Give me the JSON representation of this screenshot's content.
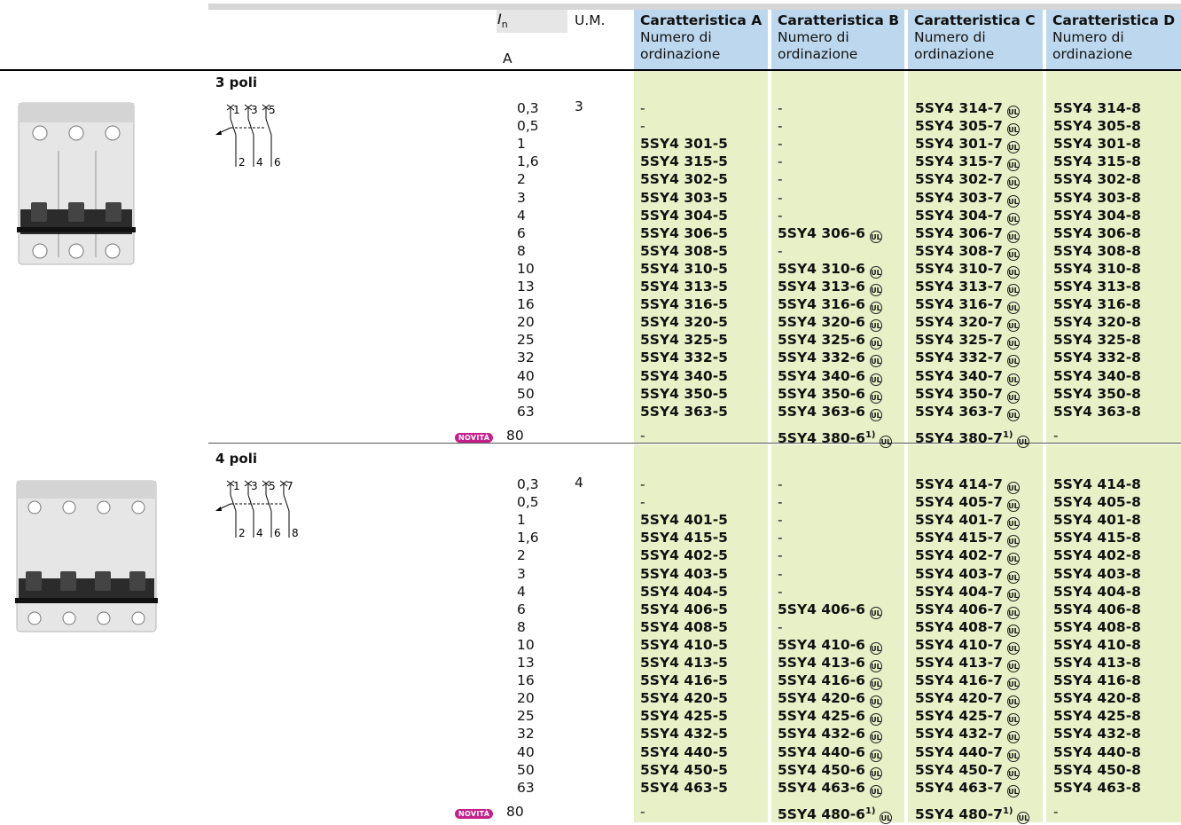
{
  "header": {
    "in_symbol": "I",
    "in_sub": "n",
    "in_unit": "A",
    "um": "U.M.",
    "cols": [
      {
        "title": "Caratteristica A",
        "sub1": "Numero di",
        "sub2": "ordinazione"
      },
      {
        "title": "Caratteristica B",
        "sub1": "Numero di",
        "sub2": "ordinazione"
      },
      {
        "title": "Caratteristica C",
        "sub1": "Numero di",
        "sub2": "ordinazione"
      },
      {
        "title": "Caratteristica D",
        "sub1": "Numero di",
        "sub2": "ordinazione"
      }
    ]
  },
  "symbol_ul": "UL",
  "sections": [
    {
      "title": "3 poli",
      "um": "3",
      "terminals_top": [
        "1",
        "3",
        "5"
      ],
      "terminals_bottom": [
        "2",
        "4",
        "6"
      ],
      "rows": [
        {
          "in": "0,3",
          "a": "-",
          "b": "-",
          "c": "5SY4 314-7",
          "d": "5SY4 314-8"
        },
        {
          "in": "0,5",
          "a": "-",
          "b": "-",
          "c": "5SY4 305-7",
          "d": "5SY4 305-8"
        },
        {
          "in": "1",
          "a": "5SY4 301-5",
          "b": "-",
          "c": "5SY4 301-7",
          "d": "5SY4 301-8"
        },
        {
          "in": "1,6",
          "a": "5SY4 315-5",
          "b": "-",
          "c": "5SY4 315-7",
          "d": "5SY4 315-8"
        },
        {
          "in": "2",
          "a": "5SY4 302-5",
          "b": "-",
          "c": "5SY4 302-7",
          "d": "5SY4 302-8"
        },
        {
          "in": "3",
          "a": "5SY4 303-5",
          "b": "-",
          "c": "5SY4 303-7",
          "d": "5SY4 303-8"
        },
        {
          "in": "4",
          "a": "5SY4 304-5",
          "b": "-",
          "c": "5SY4 304-7",
          "d": "5SY4 304-8"
        },
        {
          "in": "6",
          "a": "5SY4 306-5",
          "b": "5SY4 306-6",
          "c": "5SY4 306-7",
          "d": "5SY4 306-8"
        },
        {
          "in": "8",
          "a": "5SY4 308-5",
          "b": "-",
          "c": "5SY4 308-7",
          "d": "5SY4 308-8"
        },
        {
          "in": "10",
          "a": "5SY4 310-5",
          "b": "5SY4 310-6",
          "c": "5SY4 310-7",
          "d": "5SY4 310-8"
        },
        {
          "in": "13",
          "a": "5SY4 313-5",
          "b": "5SY4 313-6",
          "c": "5SY4 313-7",
          "d": "5SY4 313-8"
        },
        {
          "in": "16",
          "a": "5SY4 316-5",
          "b": "5SY4 316-6",
          "c": "5SY4 316-7",
          "d": "5SY4 316-8"
        },
        {
          "in": "20",
          "a": "5SY4 320-5",
          "b": "5SY4 320-6",
          "c": "5SY4 320-7",
          "d": "5SY4 320-8"
        },
        {
          "in": "25",
          "a": "5SY4 325-5",
          "b": "5SY4 325-6",
          "c": "5SY4 325-7",
          "d": "5SY4 325-8"
        },
        {
          "in": "32",
          "a": "5SY4 332-5",
          "b": "5SY4 332-6",
          "c": "5SY4 332-7",
          "d": "5SY4 332-8"
        },
        {
          "in": "40",
          "a": "5SY4 340-5",
          "b": "5SY4 340-6",
          "c": "5SY4 340-7",
          "d": "5SY4 340-8"
        },
        {
          "in": "50",
          "a": "5SY4 350-5",
          "b": "5SY4 350-6",
          "c": "5SY4 350-7",
          "d": "5SY4 350-8"
        },
        {
          "in": "63",
          "a": "5SY4 363-5",
          "b": "5SY4 363-6",
          "c": "5SY4 363-7",
          "d": "5SY4 363-8"
        }
      ],
      "new_row": {
        "badge": "NOVITÀ",
        "in": "80",
        "a": "-",
        "b": "5SY4 380-6",
        "b_sup": "1)",
        "c": "5SY4 380-7",
        "c_sup": "1)",
        "d": "-"
      }
    },
    {
      "title": "4 poli",
      "um": "4",
      "terminals_top": [
        "1",
        "3",
        "5",
        "7"
      ],
      "terminals_bottom": [
        "2",
        "4",
        "6",
        "8"
      ],
      "rows": [
        {
          "in": "0,3",
          "a": "-",
          "b": "-",
          "c": "5SY4 414-7",
          "d": "5SY4 414-8"
        },
        {
          "in": "0,5",
          "a": "-",
          "b": "-",
          "c": "5SY4 405-7",
          "d": "5SY4 405-8"
        },
        {
          "in": "1",
          "a": "5SY4 401-5",
          "b": "-",
          "c": "5SY4 401-7",
          "d": "5SY4 401-8"
        },
        {
          "in": "1,6",
          "a": "5SY4 415-5",
          "b": "-",
          "c": "5SY4 415-7",
          "d": "5SY4 415-8"
        },
        {
          "in": "2",
          "a": "5SY4 402-5",
          "b": "-",
          "c": "5SY4 402-7",
          "d": "5SY4 402-8"
        },
        {
          "in": "3",
          "a": "5SY4 403-5",
          "b": "-",
          "c": "5SY4 403-7",
          "d": "5SY4 403-8"
        },
        {
          "in": "4",
          "a": "5SY4 404-5",
          "b": "-",
          "c": "5SY4 404-7",
          "d": "5SY4 404-8"
        },
        {
          "in": "6",
          "a": "5SY4 406-5",
          "b": "5SY4 406-6",
          "c": "5SY4 406-7",
          "d": "5SY4 406-8"
        },
        {
          "in": "8",
          "a": "5SY4 408-5",
          "b": "-",
          "c": "5SY4 408-7",
          "d": "5SY4 408-8"
        },
        {
          "in": "10",
          "a": "5SY4 410-5",
          "b": "5SY4 410-6",
          "c": "5SY4 410-7",
          "d": "5SY4 410-8"
        },
        {
          "in": "13",
          "a": "5SY4 413-5",
          "b": "5SY4 413-6",
          "c": "5SY4 413-7",
          "d": "5SY4 413-8"
        },
        {
          "in": "16",
          "a": "5SY4 416-5",
          "b": "5SY4 416-6",
          "c": "5SY4 416-7",
          "d": "5SY4 416-8"
        },
        {
          "in": "20",
          "a": "5SY4 420-5",
          "b": "5SY4 420-6",
          "c": "5SY4 420-7",
          "d": "5SY4 420-8"
        },
        {
          "in": "25",
          "a": "5SY4 425-5",
          "b": "5SY4 425-6",
          "c": "5SY4 425-7",
          "d": "5SY4 425-8"
        },
        {
          "in": "32",
          "a": "5SY4 432-5",
          "b": "5SY4 432-6",
          "c": "5SY4 432-7",
          "d": "5SY4 432-8"
        },
        {
          "in": "40",
          "a": "5SY4 440-5",
          "b": "5SY4 440-6",
          "c": "5SY4 440-7",
          "d": "5SY4 440-8"
        },
        {
          "in": "50",
          "a": "5SY4 450-5",
          "b": "5SY4 450-6",
          "c": "5SY4 450-7",
          "d": "5SY4 450-8"
        },
        {
          "in": "63",
          "a": "5SY4 463-5",
          "b": "5SY4 463-6",
          "c": "5SY4 463-7",
          "d": "5SY4 463-8"
        }
      ],
      "new_row": {
        "badge": "NOVITÀ",
        "in": "80",
        "a": "-",
        "b": "5SY4 480-6",
        "b_sup": "1)",
        "c": "5SY4 480-7",
        "c_sup": "1)",
        "d": "-"
      }
    }
  ],
  "colors": {
    "header_blue": "#bdd8ee",
    "band_green": "#e8f0c8",
    "badge_magenta": "#c4208a"
  }
}
